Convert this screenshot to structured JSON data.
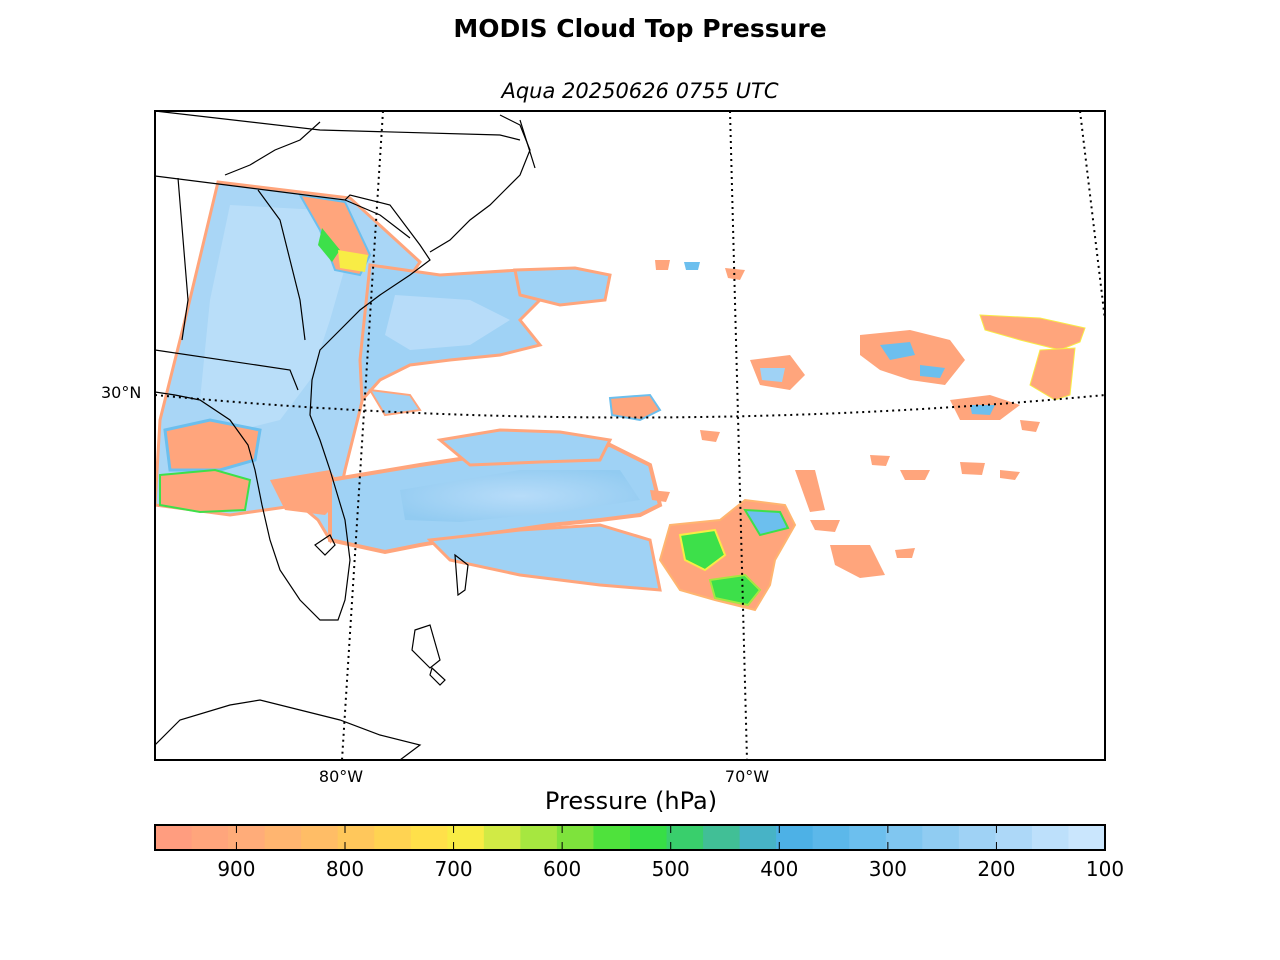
{
  "title": "MODIS Cloud Top Pressure",
  "subtitle": "Aqua 20250626 0755 UTC",
  "map": {
    "latitude_labels": [
      "30°N"
    ],
    "longitude_labels": [
      "80°W",
      "70°W"
    ],
    "graticule_style": "dotted",
    "coastlines": true,
    "state_borders": true
  },
  "colorbar": {
    "label": "Pressure (hPa)",
    "ticks": [
      "900",
      "800",
      "700",
      "600",
      "500",
      "400",
      "300",
      "200",
      "100"
    ],
    "range": [
      975,
      100
    ],
    "colors": [
      "#ff9d7f",
      "#ffa57c",
      "#ffac79",
      "#ffb570",
      "#ffbd66",
      "#ffc75b",
      "#ffd352",
      "#ffe04a",
      "#f8ec45",
      "#d1ea45",
      "#a6e740",
      "#7ee33c",
      "#4fe23c",
      "#37de46",
      "#39cf6c",
      "#41bf96",
      "#47b3c6",
      "#4db1e6",
      "#5cb8ea",
      "#6cbfee",
      "#80c6f0",
      "#90ccf2",
      "#9fd2f5",
      "#add8f8",
      "#bde0fb",
      "#cae6fd"
    ]
  },
  "legend_colors": {
    "low_cloud": "#ffa57c",
    "mid_cloud": "#3de04a",
    "high_cloud": "#9fd2f5"
  }
}
